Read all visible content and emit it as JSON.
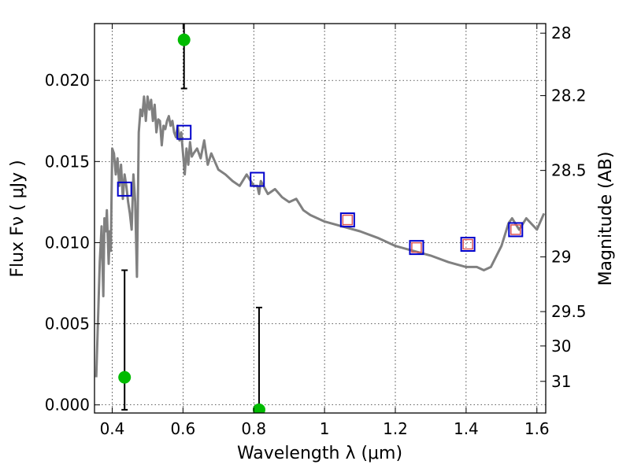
{
  "chart_data": {
    "type": "line",
    "xlabel": "Wavelength  λ (μm)",
    "ylabel": "Flux  Fν  ( μJy )",
    "y2label": "Magnitude (AB)",
    "xlim": [
      0.35,
      1.625
    ],
    "ylim": [
      -0.0005,
      0.0235
    ],
    "grid": true,
    "x_ticks": [
      0.4,
      0.6,
      0.8,
      1.0,
      1.2,
      1.4,
      1.6
    ],
    "x_tick_labels": [
      "0.4",
      "0.6",
      "0.8",
      "1",
      "1.2",
      "1.4",
      "1.6"
    ],
    "y_ticks": [
      0.0,
      0.005,
      0.01,
      0.015,
      0.02
    ],
    "y_tick_labels": [
      "0.000",
      "0.005",
      "0.010",
      "0.015",
      "0.020"
    ],
    "y2_ticks": [
      {
        "label": "28",
        "flux": 0.02291
      },
      {
        "label": "28.2",
        "flux": 0.01906
      },
      {
        "label": "28.5",
        "flux": 0.01445
      },
      {
        "label": "29",
        "flux": 0.00912
      },
      {
        "label": "29.5",
        "flux": 0.00575
      },
      {
        "label": "30",
        "flux": 0.00363
      },
      {
        "label": "31",
        "flux": 0.00145
      }
    ],
    "colors": {
      "model": "#808080",
      "photometry": "#00bb00",
      "error_bar": "#000000",
      "model_box": "#0000cc",
      "model_box_inner": "#dd5555"
    },
    "series": [
      {
        "type": "line",
        "x": [
          0.355,
          0.365,
          0.37,
          0.375,
          0.378,
          0.382,
          0.385,
          0.39,
          0.393,
          0.396,
          0.4,
          0.405,
          0.41,
          0.415,
          0.42,
          0.425,
          0.43,
          0.435,
          0.44,
          0.445,
          0.45,
          0.455,
          0.46,
          0.465,
          0.47,
          0.475,
          0.48,
          0.485,
          0.49,
          0.495,
          0.5,
          0.505,
          0.51,
          0.515,
          0.52,
          0.525,
          0.53,
          0.535,
          0.54,
          0.545,
          0.55,
          0.555,
          0.56,
          0.565,
          0.57,
          0.575,
          0.58,
          0.585,
          0.59,
          0.595,
          0.6,
          0.605,
          0.61,
          0.615,
          0.62,
          0.625,
          0.63,
          0.64,
          0.65,
          0.66,
          0.67,
          0.68,
          0.69,
          0.7,
          0.72,
          0.74,
          0.76,
          0.78,
          0.8,
          0.81,
          0.815,
          0.82,
          0.84,
          0.86,
          0.88,
          0.9,
          0.92,
          0.94,
          0.96,
          0.98,
          1.0,
          1.05,
          1.1,
          1.15,
          1.2,
          1.25,
          1.3,
          1.35,
          1.4,
          1.43,
          1.45,
          1.47,
          1.5,
          1.52,
          1.53,
          1.55,
          1.57,
          1.6,
          1.62
        ],
        "y": [
          0.0017,
          0.0088,
          0.011,
          0.0067,
          0.0115,
          0.0107,
          0.012,
          0.0087,
          0.0107,
          0.0095,
          0.0158,
          0.0155,
          0.0142,
          0.0152,
          0.0135,
          0.0148,
          0.0127,
          0.0142,
          0.0135,
          0.0125,
          0.0118,
          0.0108,
          0.0142,
          0.0125,
          0.0079,
          0.0168,
          0.0182,
          0.0178,
          0.019,
          0.0175,
          0.019,
          0.0182,
          0.0188,
          0.0175,
          0.0185,
          0.0168,
          0.0176,
          0.0175,
          0.016,
          0.0172,
          0.017,
          0.0175,
          0.0178,
          0.0172,
          0.0175,
          0.0168,
          0.0165,
          0.0172,
          0.0163,
          0.0168,
          0.0155,
          0.0142,
          0.0158,
          0.0148,
          0.0162,
          0.0153,
          0.0155,
          0.0158,
          0.0152,
          0.0163,
          0.0148,
          0.0155,
          0.015,
          0.0145,
          0.0142,
          0.0138,
          0.0135,
          0.0142,
          0.0135,
          0.0135,
          0.013,
          0.0138,
          0.013,
          0.0133,
          0.0128,
          0.0125,
          0.0127,
          0.012,
          0.0117,
          0.0115,
          0.0113,
          0.011,
          0.0107,
          0.0103,
          0.0098,
          0.0095,
          0.0092,
          0.0088,
          0.0085,
          0.0085,
          0.0083,
          0.0085,
          0.0098,
          0.0112,
          0.0115,
          0.0108,
          0.0115,
          0.0108,
          0.0118
        ]
      },
      {
        "type": "scatter",
        "marker": "circle",
        "x": [
          0.435,
          0.603,
          0.815
        ],
        "y": [
          0.0017,
          0.0225,
          -0.0003
        ],
        "yerr_low": [
          0.002,
          0.003,
          0.0006
        ],
        "yerr_high": [
          0.0066,
          0.003,
          0.0063
        ]
      },
      {
        "type": "scatter",
        "marker": "square",
        "x": [
          0.435,
          0.603,
          0.81,
          1.065,
          1.26,
          1.405,
          1.54
        ],
        "y": [
          0.0133,
          0.0168,
          0.0139,
          0.0114,
          0.0097,
          0.0099,
          0.0108
        ]
      }
    ]
  }
}
